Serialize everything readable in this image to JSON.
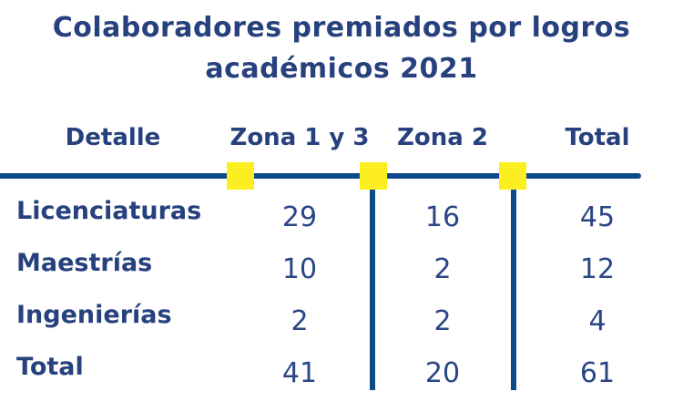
{
  "title": {
    "line1": "Colaboradores premiados por logros",
    "line2": "académicos 2021"
  },
  "table": {
    "headers": [
      "Detalle",
      "Zona 1 y 3",
      "Zona 2",
      "Total"
    ],
    "rows": [
      {
        "label": "Licenciaturas",
        "values": [
          "29",
          "16",
          "45"
        ]
      },
      {
        "label": "Maestrías",
        "values": [
          "10",
          "2",
          "12"
        ]
      },
      {
        "label": "Ingenierías",
        "values": [
          "2",
          "2",
          "4"
        ]
      },
      {
        "label": "Total",
        "values": [
          "41",
          "20",
          "61"
        ]
      }
    ]
  },
  "colors": {
    "text_navy": "#27417E",
    "line_blue": "#0C4A8A",
    "marker_yellow": "#FCEE21",
    "background": "#FFFFFF"
  },
  "chart_data": {
    "type": "table",
    "title": "Colaboradores premiados por logros académicos 2021",
    "columns": [
      "Detalle",
      "Zona 1 y 3",
      "Zona 2",
      "Total"
    ],
    "rows": [
      [
        "Licenciaturas",
        29,
        16,
        45
      ],
      [
        "Maestrías",
        10,
        2,
        12
      ],
      [
        "Ingenierías",
        2,
        2,
        4
      ],
      [
        "Total",
        41,
        20,
        61
      ]
    ],
    "notes": "Static presentation table; header underline with three yellow square markers; vertical rules separate the three numeric columns."
  }
}
